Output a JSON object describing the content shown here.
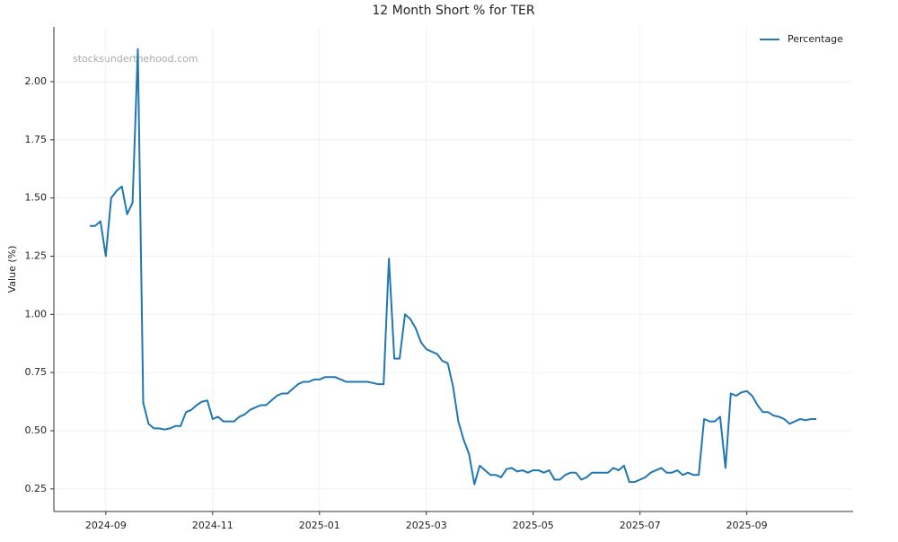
{
  "chart_data": {
    "type": "line",
    "title": "12 Month Short % for TER",
    "y_label": "Value (%)",
    "watermark": "stocksunderthehood.com",
    "categories": [
      null,
      null,
      null,
      "2024-09",
      null,
      null,
      null,
      null,
      null,
      null,
      null,
      null,
      null,
      null,
      null,
      null,
      null,
      null,
      null,
      null,
      null,
      null,
      null,
      "2024-11",
      null,
      null,
      null,
      null,
      null,
      null,
      null,
      null,
      null,
      null,
      null,
      null,
      null,
      null,
      null,
      null,
      null,
      null,
      null,
      "2025-01",
      null,
      null,
      null,
      null,
      null,
      null,
      null,
      null,
      null,
      null,
      null,
      null,
      null,
      null,
      null,
      null,
      null,
      null,
      null,
      "2025-03",
      null,
      null,
      null,
      null,
      null,
      null,
      null,
      null,
      null,
      null,
      null,
      null,
      null,
      null,
      null,
      null,
      null,
      null,
      null,
      "2025-05",
      null,
      null,
      null,
      null,
      null,
      null,
      null,
      null,
      null,
      null,
      null,
      null,
      null,
      null,
      null,
      null,
      null,
      null,
      null,
      "2025-07",
      null,
      null,
      null,
      null,
      null,
      null,
      null,
      null,
      null,
      null,
      null,
      null,
      null,
      null,
      null,
      null,
      null,
      null,
      null,
      "2025-09",
      null,
      null,
      null,
      null,
      null,
      null,
      null,
      null,
      null,
      null,
      null,
      null,
      null
    ],
    "series": [
      {
        "name": "Percentage",
        "color": "#1f77b4",
        "values": [
          1.38,
          1.38,
          1.4,
          1.25,
          1.5,
          1.53,
          1.55,
          1.43,
          1.48,
          2.14,
          0.62,
          0.53,
          0.51,
          0.51,
          0.505,
          0.51,
          0.52,
          0.52,
          0.58,
          0.59,
          0.61,
          0.625,
          0.63,
          0.55,
          0.56,
          0.54,
          0.54,
          0.54,
          0.56,
          0.57,
          0.59,
          0.6,
          0.61,
          0.61,
          0.63,
          0.65,
          0.66,
          0.66,
          0.68,
          0.7,
          0.71,
          0.71,
          0.72,
          0.72,
          0.73,
          0.73,
          0.73,
          0.72,
          0.71,
          0.71,
          0.71,
          0.71,
          0.71,
          0.705,
          0.7,
          0.7,
          1.24,
          0.81,
          0.81,
          1.0,
          0.98,
          0.94,
          0.88,
          0.85,
          0.84,
          0.83,
          0.8,
          0.79,
          0.69,
          0.54,
          0.46,
          0.4,
          0.27,
          0.35,
          0.33,
          0.31,
          0.31,
          0.3,
          0.335,
          0.34,
          0.325,
          0.33,
          0.32,
          0.33,
          0.33,
          0.32,
          0.33,
          0.29,
          0.29,
          0.31,
          0.32,
          0.32,
          0.29,
          0.3,
          0.32,
          0.32,
          0.32,
          0.32,
          0.34,
          0.33,
          0.35,
          0.28,
          0.28,
          0.29,
          0.3,
          0.32,
          0.33,
          0.34,
          0.32,
          0.32,
          0.33,
          0.31,
          0.32,
          0.31,
          0.31,
          0.55,
          0.54,
          0.54,
          0.56,
          0.34,
          0.66,
          0.65,
          0.665,
          0.67,
          0.65,
          0.61,
          0.58,
          0.58,
          0.565,
          0.56,
          0.55,
          0.53,
          0.54,
          0.55,
          0.545,
          0.55,
          0.55
        ]
      }
    ],
    "ylim": [
      0.153,
      2.235
    ],
    "yticks": [
      0.25,
      {
        "value": 0.5,
        "label": "0.50"
      },
      0.75,
      {
        "value": 1,
        "label": "1.00"
      },
      1.25,
      {
        "value": 1.5,
        "label": "1.50"
      },
      1.75,
      {
        "value": 2,
        "label": "2.00"
      }
    ],
    "grid": true,
    "legend": "upper right"
  }
}
